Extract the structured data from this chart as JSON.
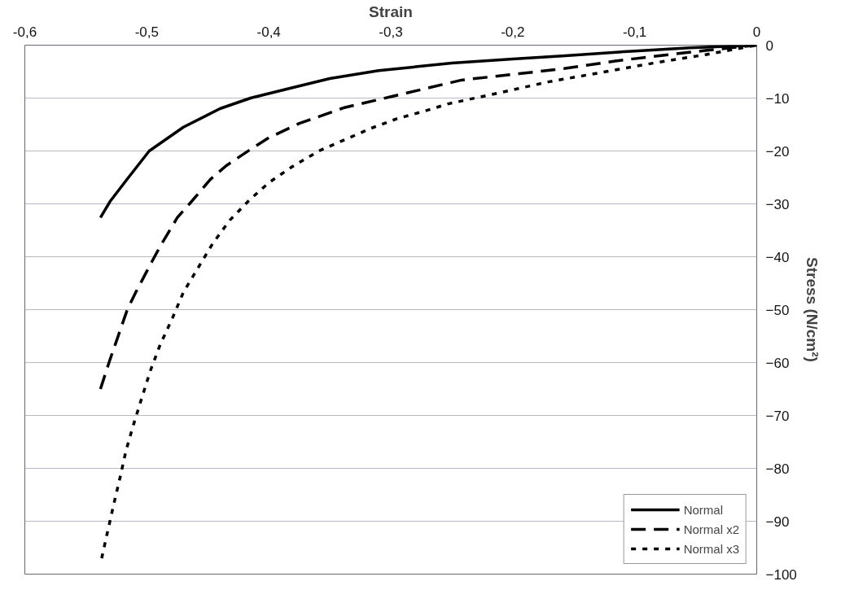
{
  "chart_data": {
    "type": "line",
    "xlabel": "Strain",
    "ylabel": "Stress (N/cm²)",
    "xlim": [
      -0.6,
      0
    ],
    "ylim": [
      -100,
      0
    ],
    "xticks": [
      {
        "value": -0.6,
        "label": "-0,6"
      },
      {
        "value": -0.5,
        "label": "-0,5"
      },
      {
        "value": -0.4,
        "label": "-0,4"
      },
      {
        "value": -0.3,
        "label": "-0,3"
      },
      {
        "value": -0.2,
        "label": "-0,2"
      },
      {
        "value": -0.1,
        "label": "-0,1"
      },
      0
    ],
    "yticks": [
      0,
      -10,
      -20,
      -30,
      -40,
      -50,
      -60,
      -70,
      -80,
      -90,
      -100
    ],
    "grid": "y",
    "legend": "bottom right",
    "series": [
      {
        "name": "Normal",
        "color": "#000000",
        "line_style": "solid",
        "x": [
          -0.538,
          -0.53,
          -0.515,
          -0.498,
          -0.47,
          -0.44,
          -0.415,
          -0.38,
          -0.35,
          -0.31,
          -0.25,
          -0.2,
          -0.157,
          -0.1,
          -0.055,
          0
        ],
        "values": [
          -32.6,
          -29.5,
          -25,
          -20,
          -15.5,
          -12,
          -10,
          -8,
          -6.3,
          -4.8,
          -3.4,
          -2.6,
          -2.0,
          -1.1,
          -0.5,
          0
        ]
      },
      {
        "name": "Normal x2",
        "color": "#000000",
        "line_style": "dashed",
        "x": [
          -0.538,
          -0.531,
          -0.516,
          -0.509,
          -0.496,
          -0.489,
          -0.475,
          -0.465,
          -0.448,
          -0.435,
          -0.415,
          -0.4,
          -0.375,
          -0.338,
          -0.299,
          -0.242,
          -0.195,
          -0.157,
          -0.116,
          -0.08,
          -0.042,
          0
        ],
        "values": [
          -65,
          -60,
          -50,
          -46.7,
          -41,
          -38,
          -32.6,
          -30,
          -25.4,
          -22.8,
          -19.7,
          -17.5,
          -14.8,
          -11.8,
          -9.7,
          -6.6,
          -5.4,
          -4.4,
          -3.0,
          -2.0,
          -1.0,
          0
        ]
      },
      {
        "name": "Normal x3",
        "color": "#000000",
        "line_style": "dotted",
        "x": [
          -0.537,
          -0.532,
          -0.527,
          -0.522,
          -0.517,
          -0.511,
          -0.504,
          -0.497,
          -0.489,
          -0.479,
          -0.47,
          -0.458,
          -0.446,
          -0.432,
          -0.416,
          -0.4,
          -0.381,
          -0.359,
          -0.338,
          -0.316,
          -0.295,
          -0.273,
          -0.253,
          -0.211,
          -0.17,
          -0.126,
          -0.085,
          -0.042,
          0
        ],
        "values": [
          -97,
          -91.8,
          -86.7,
          -81.8,
          -76.6,
          -71.8,
          -66.6,
          -61.5,
          -56.6,
          -51.6,
          -46.7,
          -42.1,
          -37.5,
          -33.1,
          -29.3,
          -26,
          -23,
          -20,
          -17.9,
          -15.7,
          -13.9,
          -12.5,
          -11.1,
          -9.0,
          -6.9,
          -5.1,
          -3.4,
          -1.8,
          0
        ]
      }
    ]
  }
}
